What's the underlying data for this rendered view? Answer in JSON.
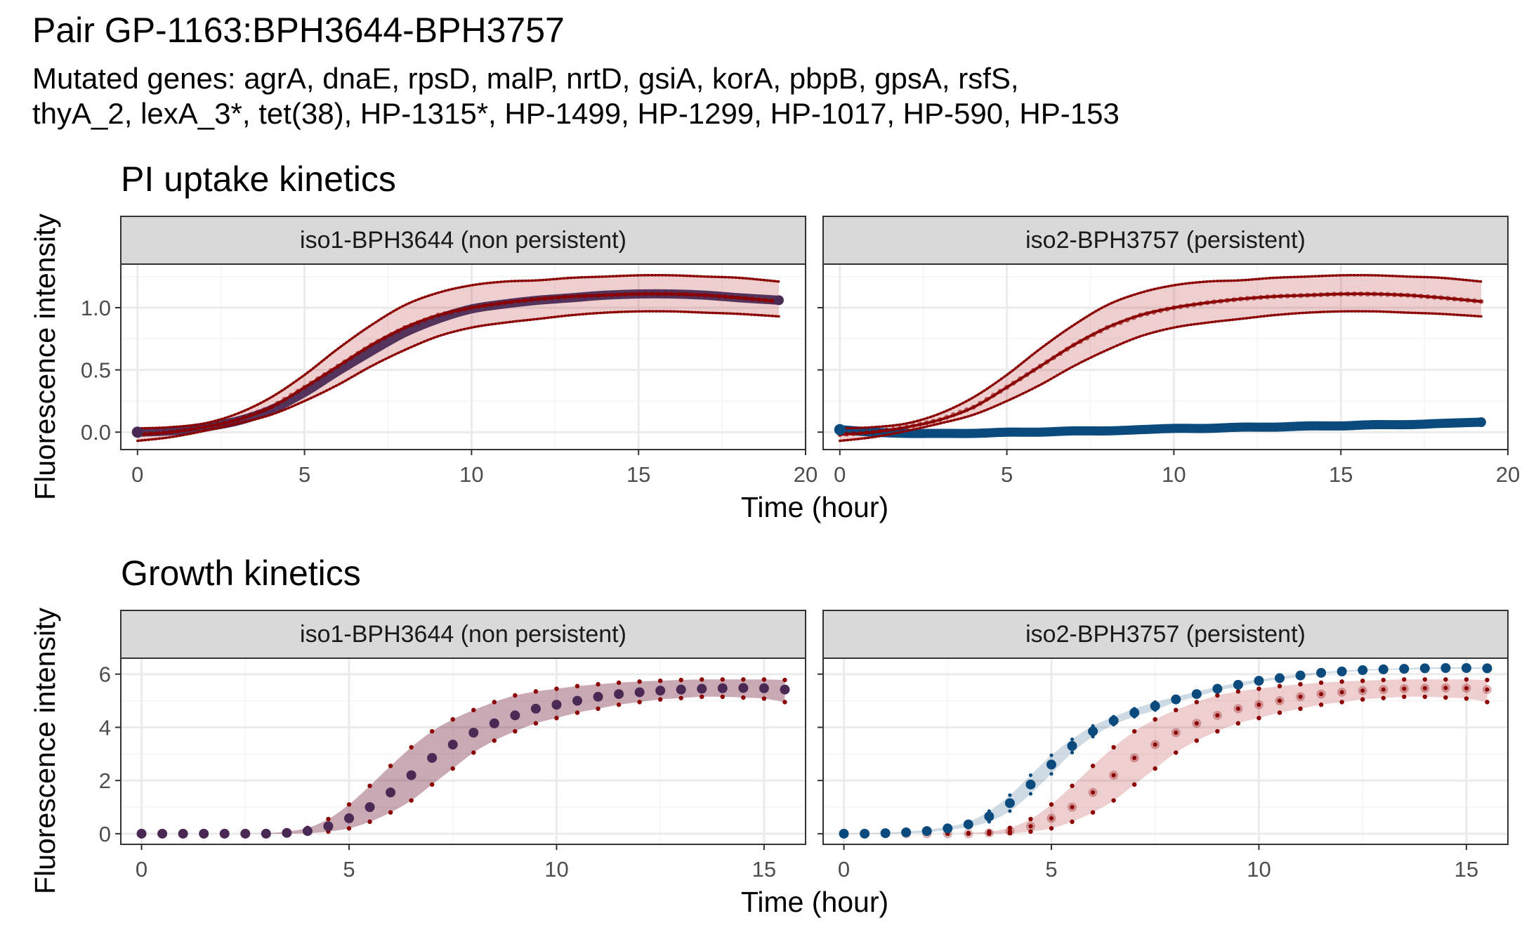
{
  "figure": {
    "title": "Pair GP-1163:BPH3644-BPH3757",
    "subtitle_line1": "Mutated genes: agrA, dnaE, rpsD, malP, nrtD, gsiA, korA, pbpB, gpsA, rsfS,",
    "subtitle_line2": "thyA_2, lexA_3*, tet(38), HP-1315*, HP-1499, HP-1299, HP-1017, HP-590, HP-153"
  },
  "colors": {
    "persistent_ref": "#8b0000",
    "reference_fill": "#b22222",
    "isolate_blue": "#0b4a7d",
    "overlap_purple": "#4a2a55",
    "strip_bg": "#d9d9d9",
    "grid_major": "#ebebeb",
    "grid_minor": "#f5f5f5"
  },
  "chart_data": [
    {
      "type": "line",
      "section_title": "PI uptake kinetics",
      "xlabel": "Time (hour)",
      "ylabel": "Fluorescence intensity",
      "xlim": [
        -0.5,
        20
      ],
      "ylim": [
        -0.14,
        1.35
      ],
      "xticks": [
        0,
        5,
        10,
        15,
        20
      ],
      "yticks": [
        0.0,
        0.5,
        1.0
      ],
      "ytick_labels": [
        "0.0",
        "0.5",
        "1.0"
      ],
      "panels": [
        {
          "strip": "iso1-BPH3644 (non persistent)",
          "isolate_color": "overlap_purple",
          "x": [
            0,
            1,
            2,
            3,
            4,
            5,
            6,
            7,
            8,
            9,
            10,
            11,
            12,
            13,
            14,
            15,
            16,
            17,
            18,
            19.2
          ],
          "isolate_mean": [
            0.0,
            0.01,
            0.04,
            0.09,
            0.18,
            0.32,
            0.49,
            0.65,
            0.8,
            0.91,
            0.99,
            1.03,
            1.06,
            1.08,
            1.1,
            1.11,
            1.11,
            1.1,
            1.08,
            1.06
          ],
          "reference_mean": [
            -0.02,
            0.0,
            0.04,
            0.1,
            0.2,
            0.36,
            0.53,
            0.7,
            0.84,
            0.94,
            1.0,
            1.04,
            1.07,
            1.09,
            1.1,
            1.11,
            1.11,
            1.1,
            1.08,
            1.05
          ],
          "reference_upper": [
            0.03,
            0.04,
            0.07,
            0.15,
            0.28,
            0.46,
            0.67,
            0.86,
            1.02,
            1.12,
            1.18,
            1.21,
            1.22,
            1.24,
            1.25,
            1.26,
            1.26,
            1.25,
            1.24,
            1.21
          ],
          "reference_lower": [
            -0.07,
            -0.04,
            0.01,
            0.07,
            0.14,
            0.25,
            0.38,
            0.53,
            0.66,
            0.77,
            0.84,
            0.88,
            0.91,
            0.94,
            0.96,
            0.97,
            0.97,
            0.96,
            0.95,
            0.93
          ]
        },
        {
          "strip": "iso2-BPH3757 (persistent)",
          "isolate_color": "isolate_blue",
          "x": [
            0,
            1,
            2,
            3,
            4,
            5,
            6,
            7,
            8,
            9,
            10,
            11,
            12,
            13,
            14,
            15,
            16,
            17,
            18,
            19.2
          ],
          "isolate_mean": [
            0.02,
            0.0,
            -0.01,
            -0.01,
            -0.01,
            0.0,
            0.0,
            0.01,
            0.01,
            0.02,
            0.03,
            0.03,
            0.04,
            0.04,
            0.05,
            0.05,
            0.06,
            0.06,
            0.07,
            0.08
          ],
          "reference_mean": [
            -0.02,
            0.0,
            0.04,
            0.1,
            0.2,
            0.36,
            0.53,
            0.7,
            0.84,
            0.94,
            1.0,
            1.04,
            1.07,
            1.09,
            1.1,
            1.11,
            1.11,
            1.1,
            1.08,
            1.05
          ],
          "reference_upper": [
            0.03,
            0.04,
            0.07,
            0.15,
            0.28,
            0.46,
            0.67,
            0.86,
            1.02,
            1.12,
            1.18,
            1.21,
            1.22,
            1.24,
            1.25,
            1.26,
            1.26,
            1.25,
            1.24,
            1.21
          ],
          "reference_lower": [
            -0.07,
            -0.04,
            0.01,
            0.07,
            0.14,
            0.25,
            0.38,
            0.53,
            0.66,
            0.77,
            0.84,
            0.88,
            0.91,
            0.94,
            0.96,
            0.97,
            0.97,
            0.96,
            0.95,
            0.93
          ]
        }
      ]
    },
    {
      "type": "line",
      "section_title": "Growth kinetics",
      "xlabel": "Time (hour)",
      "ylabel": "Fluorescence intensity",
      "xlim": [
        -0.5,
        16
      ],
      "ylim": [
        -0.4,
        6.6
      ],
      "xticks": [
        0,
        5,
        10,
        15
      ],
      "yticks": [
        0,
        2,
        4,
        6
      ],
      "ytick_labels": [
        "0",
        "2",
        "4",
        "6"
      ],
      "panels": [
        {
          "strip": "iso1-BPH3644 (non persistent)",
          "isolate_color": "overlap_purple",
          "x": [
            0,
            0.5,
            1,
            1.5,
            2,
            2.5,
            3,
            3.5,
            4,
            4.5,
            5,
            5.5,
            6,
            6.5,
            7,
            7.5,
            8,
            8.5,
            9,
            9.5,
            10,
            10.5,
            11,
            11.5,
            12,
            12.5,
            13,
            13.5,
            14,
            14.5,
            15,
            15.5
          ],
          "isolate_mean": [
            0.0,
            0.0,
            0.0,
            0.0,
            0.0,
            0.0,
            0.0,
            0.03,
            0.1,
            0.28,
            0.58,
            1.0,
            1.55,
            2.2,
            2.85,
            3.35,
            3.8,
            4.15,
            4.45,
            4.7,
            4.85,
            5.0,
            5.15,
            5.25,
            5.32,
            5.38,
            5.42,
            5.45,
            5.47,
            5.48,
            5.47,
            5.42
          ],
          "reference_mean": [
            0.0,
            0.0,
            0.0,
            0.0,
            0.0,
            0.0,
            0.0,
            0.03,
            0.1,
            0.28,
            0.58,
            1.0,
            1.55,
            2.2,
            2.85,
            3.35,
            3.8,
            4.15,
            4.45,
            4.7,
            4.85,
            5.0,
            5.15,
            5.25,
            5.32,
            5.38,
            5.42,
            5.45,
            5.47,
            5.48,
            5.47,
            5.42
          ],
          "reference_upper": [
            0.0,
            0.0,
            0.0,
            0.0,
            0.0,
            0.0,
            0.02,
            0.08,
            0.22,
            0.55,
            1.1,
            1.8,
            2.55,
            3.25,
            3.85,
            4.3,
            4.65,
            4.95,
            5.2,
            5.35,
            5.45,
            5.55,
            5.62,
            5.68,
            5.72,
            5.75,
            5.78,
            5.8,
            5.8,
            5.8,
            5.8,
            5.78
          ],
          "reference_lower": [
            0.0,
            0.0,
            0.0,
            0.0,
            0.0,
            0.0,
            0.0,
            0.0,
            0.02,
            0.08,
            0.2,
            0.45,
            0.8,
            1.25,
            1.85,
            2.45,
            3.05,
            3.5,
            3.85,
            4.15,
            4.35,
            4.55,
            4.7,
            4.85,
            4.95,
            5.05,
            5.1,
            5.15,
            5.15,
            5.12,
            5.08,
            4.95
          ]
        },
        {
          "strip": "iso2-BPH3757 (persistent)",
          "isolate_color": "isolate_blue",
          "x": [
            0,
            0.5,
            1,
            1.5,
            2,
            2.5,
            3,
            3.5,
            4,
            4.5,
            5,
            5.5,
            6,
            6.5,
            7,
            7.5,
            8,
            8.5,
            9,
            9.5,
            10,
            10.5,
            11,
            11.5,
            12,
            12.5,
            13,
            13.5,
            14,
            14.5,
            15,
            15.5
          ],
          "isolate_mean": [
            0.0,
            0.0,
            0.02,
            0.05,
            0.1,
            0.2,
            0.35,
            0.65,
            1.15,
            1.85,
            2.6,
            3.3,
            3.85,
            4.25,
            4.55,
            4.8,
            5.05,
            5.25,
            5.45,
            5.6,
            5.75,
            5.85,
            5.95,
            6.05,
            6.1,
            6.15,
            6.18,
            6.2,
            6.22,
            6.23,
            6.23,
            6.22
          ],
          "isolate_upper": [
            0.02,
            0.02,
            0.04,
            0.08,
            0.15,
            0.26,
            0.45,
            0.85,
            1.45,
            2.2,
            2.95,
            3.55,
            4.05,
            4.4,
            4.7,
            4.95,
            5.15,
            5.35,
            5.52,
            5.68,
            5.8,
            5.9,
            6.0,
            6.08,
            6.13,
            6.18,
            6.2,
            6.23,
            6.25,
            6.26,
            6.26,
            6.25
          ],
          "isolate_lower": [
            0.0,
            0.0,
            0.0,
            0.02,
            0.05,
            0.14,
            0.25,
            0.45,
            0.85,
            1.5,
            2.25,
            3.05,
            3.65,
            4.1,
            4.4,
            4.65,
            4.95,
            5.15,
            5.38,
            5.52,
            5.7,
            5.8,
            5.9,
            6.02,
            6.07,
            6.12,
            6.16,
            6.17,
            6.19,
            6.2,
            6.2,
            6.19
          ],
          "reference_mean": [
            0.0,
            0.0,
            0.0,
            0.0,
            0.0,
            0.0,
            0.0,
            0.03,
            0.1,
            0.28,
            0.58,
            1.0,
            1.55,
            2.2,
            2.85,
            3.35,
            3.8,
            4.15,
            4.45,
            4.7,
            4.85,
            5.0,
            5.15,
            5.25,
            5.32,
            5.38,
            5.42,
            5.45,
            5.47,
            5.48,
            5.47,
            5.42
          ],
          "reference_upper": [
            0.0,
            0.0,
            0.0,
            0.0,
            0.0,
            0.0,
            0.02,
            0.08,
            0.22,
            0.55,
            1.1,
            1.8,
            2.55,
            3.25,
            3.85,
            4.3,
            4.65,
            4.95,
            5.2,
            5.35,
            5.45,
            5.55,
            5.62,
            5.68,
            5.72,
            5.75,
            5.78,
            5.8,
            5.8,
            5.8,
            5.8,
            5.78
          ],
          "reference_lower": [
            0.0,
            0.0,
            0.0,
            0.0,
            0.0,
            0.0,
            0.0,
            0.0,
            0.02,
            0.08,
            0.2,
            0.45,
            0.8,
            1.25,
            1.85,
            2.45,
            3.05,
            3.5,
            3.85,
            4.15,
            4.35,
            4.55,
            4.7,
            4.85,
            4.95,
            5.05,
            5.1,
            5.15,
            5.15,
            5.12,
            5.08,
            4.95
          ]
        }
      ]
    }
  ]
}
